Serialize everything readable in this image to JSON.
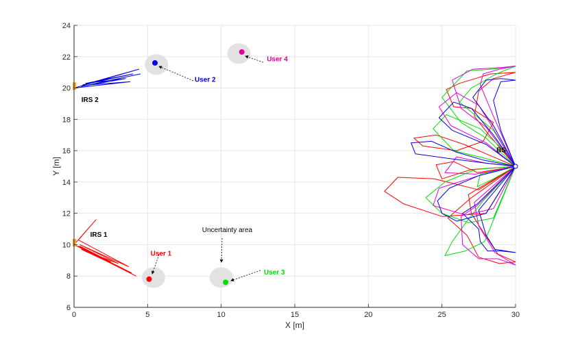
{
  "chart_data": {
    "type": "scatter",
    "title": "",
    "xlabel": "X [m]",
    "ylabel": "Y [m]",
    "xlim": [
      0,
      30
    ],
    "ylim": [
      6,
      24
    ],
    "xticks": [
      0,
      5,
      10,
      15,
      20,
      25,
      30
    ],
    "yticks": [
      6,
      8,
      10,
      12,
      14,
      16,
      18,
      20,
      22,
      24
    ],
    "grid": true,
    "users": [
      {
        "name": "User 1",
        "x": 5.1,
        "y": 7.8,
        "color": "#ff0000",
        "label_x": 5.2,
        "label_y": 9.3
      },
      {
        "name": "User 2",
        "x": 5.5,
        "y": 21.6,
        "color": "#0000e0",
        "label_x": 8.2,
        "label_y": 20.4
      },
      {
        "name": "User 3",
        "x": 10.3,
        "y": 7.6,
        "color": "#00dd00",
        "label_x": 12.9,
        "label_y": 8.1
      },
      {
        "name": "User 4",
        "x": 11.4,
        "y": 22.3,
        "color": "#e0009f",
        "label_x": 13.1,
        "label_y": 21.7
      }
    ],
    "uncertainty_areas": [
      {
        "x": 5.4,
        "y": 7.9
      },
      {
        "x": 5.6,
        "y": 21.5
      },
      {
        "x": 10.0,
        "y": 7.9
      },
      {
        "x": 11.2,
        "y": 22.2
      }
    ],
    "uncertainty_label": {
      "text": "Uncertainty area",
      "x": 8.7,
      "y": 10.8
    },
    "irs": [
      {
        "name": "IRS 1",
        "x": 0.0,
        "y": 10.1,
        "color": "#f5a623",
        "label_x": 1.1,
        "label_y": 10.5
      },
      {
        "name": "IRS 2",
        "x": 0.0,
        "y": 20.1,
        "color": "#f5a623",
        "label_x": 0.5,
        "label_y": 19.1
      }
    ],
    "bs": {
      "name": "BS",
      "x": 30.0,
      "y": 15.0,
      "label_x": 28.7,
      "label_y": 15.9
    },
    "series": [
      {
        "name": "IRS 1 beam",
        "color": "#ff0000",
        "points": [
          [
            0,
            10
          ],
          [
            1.5,
            11.6
          ],
          [
            0.3,
            10.3
          ],
          [
            3.7,
            8.6
          ],
          [
            0.4,
            10.0
          ],
          [
            3.0,
            8.8
          ],
          [
            0.5,
            9.7
          ],
          [
            3.9,
            8.2
          ],
          [
            0.3,
            9.9
          ],
          [
            2.5,
            8.9
          ],
          [
            0.4,
            9.9
          ],
          [
            4.2,
            8.0
          ],
          [
            0,
            10
          ]
        ]
      },
      {
        "name": "IRS 2 beam",
        "color": "#0000e0",
        "points": [
          [
            0,
            20
          ],
          [
            4.4,
            21.2
          ],
          [
            0.6,
            20.2
          ],
          [
            4.0,
            20.9
          ],
          [
            0.8,
            20.3
          ],
          [
            3.5,
            20.6
          ],
          [
            0.5,
            20.1
          ],
          [
            4.5,
            20.9
          ],
          [
            1.0,
            20.2
          ],
          [
            3.8,
            20.4
          ],
          [
            0,
            20
          ]
        ]
      },
      {
        "name": "BS beam (red)",
        "color": "#ff0000",
        "points": [
          [
            30,
            15
          ],
          [
            27.5,
            13.5
          ],
          [
            24.5,
            14.2
          ],
          [
            22.0,
            14.3
          ],
          [
            21.1,
            13.4
          ],
          [
            22.4,
            12.6
          ],
          [
            25.0,
            11.8
          ],
          [
            28.0,
            12.0
          ],
          [
            30,
            15
          ],
          [
            27.0,
            13.0
          ],
          [
            25.4,
            11.7
          ],
          [
            26.7,
            10.6
          ],
          [
            27.5,
            9.2
          ],
          [
            28.9,
            8.8
          ],
          [
            30,
            8.9
          ],
          [
            28.8,
            9.4
          ],
          [
            27.6,
            11.1
          ],
          [
            27.0,
            12.0
          ],
          [
            26.8,
            13.2
          ],
          [
            30,
            15
          ],
          [
            27.0,
            14.8
          ],
          [
            25.0,
            14.2
          ],
          [
            24.6,
            15.1
          ],
          [
            25.8,
            15.3
          ],
          [
            27.4,
            14.6
          ],
          [
            30,
            15
          ],
          [
            28.0,
            15.8
          ],
          [
            26.5,
            16.4
          ],
          [
            24.6,
            17.0
          ],
          [
            23.1,
            16.8
          ],
          [
            23.7,
            16.3
          ],
          [
            26.0,
            16.0
          ],
          [
            27.8,
            16.6
          ],
          [
            28.5,
            17.8
          ],
          [
            27.0,
            18.7
          ],
          [
            25.8,
            18.8
          ],
          [
            25.3,
            19.9
          ],
          [
            26.2,
            20.3
          ],
          [
            28.3,
            20.9
          ],
          [
            30,
            21.0
          ],
          [
            28.5,
            20.6
          ],
          [
            27.5,
            19.8
          ],
          [
            27.2,
            18.2
          ],
          [
            28.2,
            17.0
          ],
          [
            30,
            15
          ]
        ]
      },
      {
        "name": "BS beam (green)",
        "color": "#00dd00",
        "points": [
          [
            30,
            15
          ],
          [
            27.3,
            14.8
          ],
          [
            25.2,
            14.0
          ],
          [
            23.9,
            13.0
          ],
          [
            25.0,
            12.0
          ],
          [
            26.8,
            11.4
          ],
          [
            28.5,
            11.7
          ],
          [
            30,
            15
          ],
          [
            27.8,
            12.8
          ],
          [
            26.7,
            11.5
          ],
          [
            25.7,
            10.2
          ],
          [
            25.2,
            9.3
          ],
          [
            26.6,
            9.6
          ],
          [
            27.9,
            10.2
          ],
          [
            30,
            15
          ],
          [
            28.5,
            14.2
          ],
          [
            27.4,
            13.7
          ],
          [
            27.6,
            14.5
          ],
          [
            30,
            15
          ],
          [
            28.0,
            15.5
          ],
          [
            25.8,
            16.0
          ],
          [
            24.4,
            17.4
          ],
          [
            25.3,
            18.3
          ],
          [
            27.6,
            17.4
          ],
          [
            29.0,
            16.2
          ],
          [
            30,
            15
          ],
          [
            28.0,
            16.8
          ],
          [
            26.3,
            17.8
          ],
          [
            25.0,
            19.4
          ],
          [
            26.7,
            21.1
          ],
          [
            28.4,
            21.2
          ],
          [
            30,
            21.4
          ],
          [
            28.7,
            20.9
          ],
          [
            27.0,
            20.0
          ],
          [
            26.2,
            19.1
          ],
          [
            28.5,
            17.3
          ],
          [
            30,
            15
          ]
        ]
      },
      {
        "name": "BS beam (magenta)",
        "color": "#e000e0",
        "points": [
          [
            30,
            15
          ],
          [
            27.5,
            14.4
          ],
          [
            24.8,
            13.6
          ],
          [
            24.4,
            12.5
          ],
          [
            26.6,
            11.9
          ],
          [
            28.5,
            12.3
          ],
          [
            30,
            15
          ],
          [
            27.4,
            12.5
          ],
          [
            26.3,
            11.8
          ],
          [
            26.4,
            10.0
          ],
          [
            27.5,
            9.1
          ],
          [
            28.8,
            9.1
          ],
          [
            30,
            8.7
          ],
          [
            28.6,
            9.5
          ],
          [
            27.5,
            11.2
          ],
          [
            27.2,
            12.7
          ],
          [
            30,
            15
          ],
          [
            28.0,
            15.2
          ],
          [
            26.0,
            15.6
          ],
          [
            25.2,
            14.6
          ],
          [
            27.3,
            14.5
          ],
          [
            30,
            15
          ],
          [
            28.0,
            16.5
          ],
          [
            25.6,
            17.6
          ],
          [
            24.8,
            18.8
          ],
          [
            26.0,
            19.7
          ],
          [
            27.5,
            18.9
          ],
          [
            28.3,
            17.7
          ],
          [
            30,
            15
          ],
          [
            28.0,
            17.5
          ],
          [
            26.3,
            18.7
          ],
          [
            25.7,
            20.5
          ],
          [
            27.1,
            21.2
          ],
          [
            29.0,
            21.3
          ],
          [
            30,
            21.4
          ],
          [
            28.9,
            21.2
          ],
          [
            27.8,
            20.9
          ],
          [
            27.6,
            20.2
          ],
          [
            28.5,
            18.2
          ],
          [
            30,
            15
          ]
        ]
      },
      {
        "name": "BS beam (blue)",
        "color": "#0000e0",
        "points": [
          [
            30,
            15
          ],
          [
            27.5,
            14.4
          ],
          [
            25.5,
            13.6
          ],
          [
            24.7,
            12.8
          ],
          [
            25.0,
            12.0
          ],
          [
            26.0,
            11.5
          ],
          [
            28.0,
            12.0
          ],
          [
            30,
            15
          ],
          [
            27.4,
            12.6
          ],
          [
            26.4,
            12.0
          ],
          [
            27.5,
            11.0
          ],
          [
            27.6,
            10.2
          ],
          [
            28.1,
            9.6
          ],
          [
            29.0,
            9.6
          ],
          [
            30,
            9.5
          ],
          [
            28.6,
            9.7
          ],
          [
            28.0,
            10.6
          ],
          [
            27.5,
            12.2
          ],
          [
            30,
            15
          ],
          [
            27.8,
            15.4
          ],
          [
            26.0,
            15.9
          ],
          [
            24.3,
            16.6
          ],
          [
            22.9,
            16.5
          ],
          [
            23.2,
            15.8
          ],
          [
            25.5,
            15.5
          ],
          [
            28.0,
            15.2
          ],
          [
            30,
            15
          ],
          [
            28.0,
            16.4
          ],
          [
            25.7,
            17.3
          ],
          [
            24.8,
            18.1
          ],
          [
            25.8,
            19.1
          ],
          [
            27.0,
            18.7
          ],
          [
            28.5,
            17.0
          ],
          [
            30,
            15
          ],
          [
            28.5,
            17.6
          ],
          [
            27.1,
            19.4
          ],
          [
            28.0,
            20.5
          ],
          [
            29.0,
            20.6
          ],
          [
            30,
            20.5
          ],
          [
            29.0,
            20.4
          ],
          [
            28.5,
            19.2
          ],
          [
            29.0,
            17.3
          ],
          [
            30,
            15
          ]
        ]
      }
    ]
  }
}
